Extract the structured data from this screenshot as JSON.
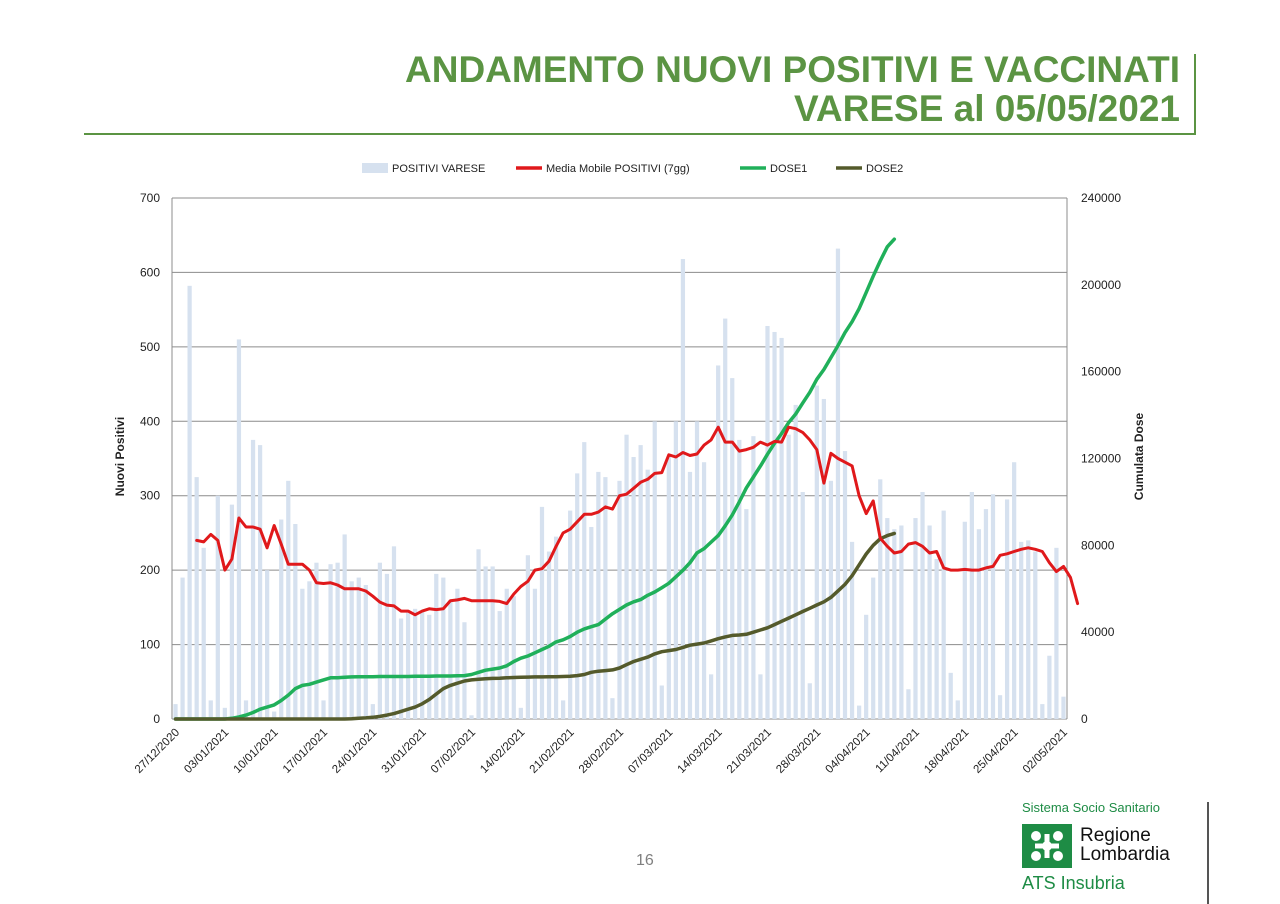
{
  "header": {
    "title_line1": "ANDAMENTO NUOVI POSITIVI E VACCINATI",
    "title_line2": "VARESE al 05/05/2021"
  },
  "footer": {
    "page_number": "16",
    "brand_line1": "Sistema Socio Sanitario",
    "brand_line2a": "Regione",
    "brand_line2b": "Lombardia",
    "brand_line3": "ATS Insubria"
  },
  "colors": {
    "title_green": "#5b9443",
    "bars": "#d6e1ef",
    "moving_avg": "#e0191b",
    "dose1": "#20b05a",
    "dose2": "#545a2b",
    "brand_green": "#1e8c45"
  },
  "chart_data": {
    "type": "bar+line",
    "ylabel": "Nuovi Positivi",
    "y2label": "Cumulata Dose",
    "ylim": [
      0,
      700
    ],
    "y2lim": [
      0,
      240000
    ],
    "yticks": [
      0,
      100,
      200,
      300,
      400,
      500,
      600,
      700
    ],
    "y2ticks": [
      0,
      40000,
      80000,
      120000,
      160000,
      200000,
      240000
    ],
    "y2tick_labels": [
      "0",
      "40000",
      "80000",
      "120000",
      "160000",
      "200000",
      "240000"
    ],
    "grid": true,
    "legend_position": "top",
    "x_tick_labels": [
      "27/12/2020",
      "03/01/2021",
      "10/01/2021",
      "17/01/2021",
      "24/01/2021",
      "31/01/2021",
      "07/02/2021",
      "14/02/2021",
      "21/02/2021",
      "28/02/2021",
      "07/03/2021",
      "14/03/2021",
      "21/03/2021",
      "28/03/2021",
      "04/04/2021",
      "11/04/2021",
      "18/04/2021",
      "25/04/2021",
      "02/05/2021"
    ],
    "x_start": "27/12/2020",
    "x_end": "05/05/2021",
    "legend": [
      "POSITIVI VARESE",
      "Media Mobile POSITIVI (7gg)",
      "DOSE1",
      "DOSE2"
    ],
    "series": [
      {
        "name": "POSITIVI VARESE",
        "type": "bar",
        "axis": "left",
        "values": [
          20,
          190,
          582,
          325,
          230,
          25,
          300,
          15,
          288,
          510,
          25,
          375,
          368,
          200,
          10,
          268,
          320,
          262,
          175,
          185,
          210,
          25,
          208,
          210,
          248,
          185,
          190,
          180,
          20,
          210,
          195,
          232,
          135,
          143,
          148,
          145,
          140,
          195,
          190,
          160,
          175,
          130,
          5,
          228,
          205,
          205,
          145,
          175,
          165,
          15,
          220,
          175,
          285,
          225,
          245,
          25,
          280,
          330,
          372,
          258,
          332,
          325,
          28,
          320,
          382,
          352,
          368,
          335,
          400,
          45,
          352,
          400,
          618,
          332,
          400,
          345,
          60,
          475,
          538,
          458,
          375,
          282,
          380,
          60,
          528,
          520,
          512,
          382,
          422,
          305,
          48,
          448,
          430,
          320,
          632,
          360,
          238,
          18,
          140,
          190,
          322,
          270,
          255,
          260,
          40,
          270,
          305,
          260,
          215,
          280,
          62,
          25,
          265,
          305,
          255,
          282,
          302,
          32,
          295,
          345,
          238,
          240,
          225,
          20,
          85,
          230,
          30
        ]
      },
      {
        "name": "Media Mobile POSITIVI (7gg)",
        "type": "line",
        "axis": "left",
        "start_day": 3,
        "values": [
          240,
          238,
          248,
          240,
          200,
          215,
          270,
          258,
          258,
          255,
          230,
          260,
          235,
          208,
          208,
          208,
          200,
          183,
          182,
          183,
          180,
          175,
          175,
          175,
          172,
          165,
          157,
          153,
          152,
          145,
          145,
          140,
          145,
          148,
          147,
          148,
          159,
          160,
          162,
          159,
          159,
          159,
          159,
          158,
          155,
          168,
          178,
          185,
          200,
          202,
          212,
          232,
          250,
          255,
          265,
          275,
          275,
          278,
          285,
          282,
          300,
          302,
          310,
          318,
          322,
          330,
          331,
          355,
          352,
          358,
          354,
          356,
          368,
          375,
          392,
          372,
          372,
          360,
          362,
          365,
          372,
          368,
          373,
          372,
          392,
          390,
          385,
          375,
          362,
          317,
          357,
          350,
          345,
          340,
          300,
          276,
          293,
          243,
          232,
          223,
          225,
          235,
          237,
          232,
          223,
          225,
          203,
          200,
          200,
          201,
          200,
          200,
          203,
          205,
          220,
          222,
          225,
          228,
          230,
          228,
          225,
          210,
          198,
          205,
          190,
          155
        ]
      },
      {
        "name": "DOSE1",
        "type": "line",
        "axis": "right",
        "values": [
          0,
          0,
          0,
          0,
          0,
          0,
          0,
          0,
          300,
          900,
          1800,
          3000,
          4500,
          5500,
          6500,
          8500,
          11000,
          14000,
          15500,
          16000,
          17000,
          18000,
          19000,
          19000,
          19200,
          19400,
          19500,
          19500,
          19500,
          19600,
          19600,
          19600,
          19600,
          19600,
          19700,
          19700,
          19700,
          19800,
          19800,
          19800,
          19900,
          20000,
          20500,
          21500,
          22500,
          23000,
          23500,
          24500,
          26500,
          28000,
          29000,
          30500,
          32000,
          33500,
          35500,
          36500,
          38000,
          40000,
          41500,
          42500,
          43500,
          46000,
          48500,
          50500,
          52500,
          54000,
          55000,
          57000,
          58500,
          60500,
          62500,
          65500,
          68500,
          72000,
          76500,
          78500,
          81500,
          84500,
          89000,
          94000,
          100000,
          106500,
          111500,
          116500,
          122000,
          127000,
          131500,
          136500,
          140500,
          145500,
          150500,
          156500,
          161000,
          166500,
          172000,
          178000,
          183000,
          189000,
          196500,
          204000,
          211000,
          217500,
          221000
        ]
      },
      {
        "name": "DOSE2",
        "type": "line",
        "axis": "right",
        "values": [
          0,
          0,
          0,
          0,
          0,
          0,
          0,
          0,
          0,
          0,
          0,
          0,
          0,
          0,
          0,
          0,
          0,
          0,
          0,
          0,
          0,
          0,
          0,
          0,
          0,
          100,
          300,
          500,
          800,
          1200,
          1800,
          2500,
          3500,
          4500,
          5500,
          7000,
          9000,
          11500,
          14000,
          15500,
          16500,
          17500,
          18000,
          18300,
          18500,
          18700,
          18800,
          19000,
          19100,
          19200,
          19300,
          19400,
          19400,
          19500,
          19500,
          19600,
          19700,
          20000,
          20500,
          21500,
          22000,
          22300,
          22600,
          23500,
          25000,
          26500,
          27500,
          28500,
          30000,
          31000,
          31500,
          32000,
          33000,
          34000,
          34500,
          35000,
          36000,
          37000,
          37800,
          38500,
          38700,
          39000,
          40000,
          41000,
          42000,
          43500,
          45000,
          46500,
          48000,
          49500,
          51000,
          52500,
          54000,
          56000,
          59000,
          62000,
          66000,
          71000,
          76000,
          80000,
          83000,
          84500,
          85500
        ]
      }
    ]
  }
}
